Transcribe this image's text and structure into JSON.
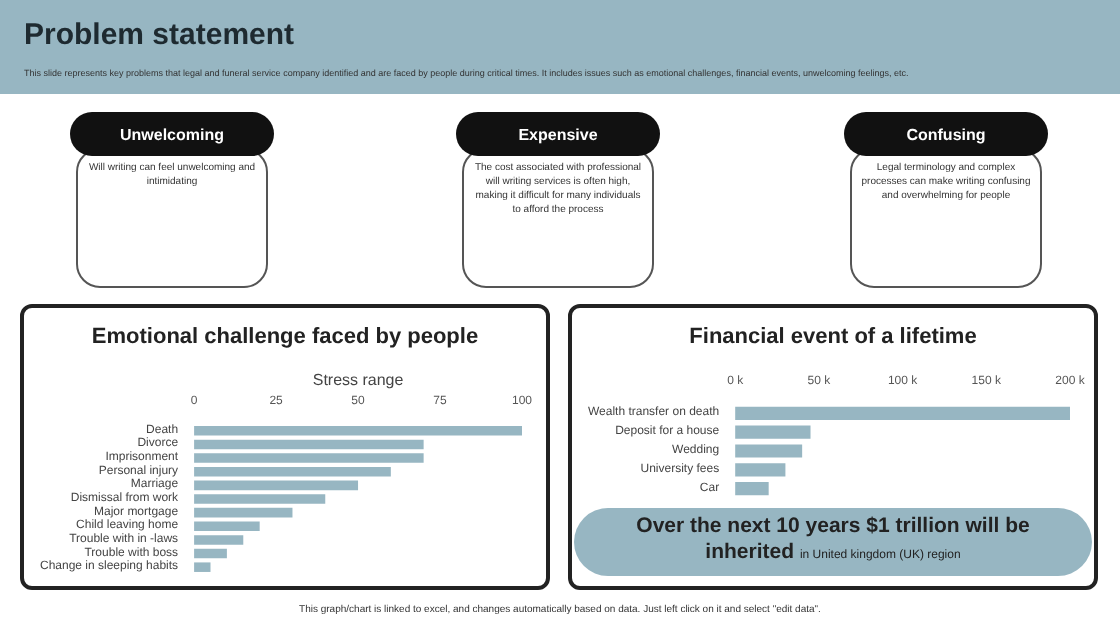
{
  "chart_data": [
    {
      "type": "other",
      "title": "Problem statement",
      "subtitle": "This slide represents key problems that legal and funeral service company identified and are faced by people during critical times. It includes issues such as emotional challenges, financial events, unwelcoming feelings, etc.",
      "annotations": [
        "Unwelcoming",
        "Will writing can feel unwelcoming and intimidating",
        "Expensive",
        "The cost associated with professional will writing services is often high, making it difficult for many individuals to afford the process",
        "Confusing",
        "Legal terminology and complex processes can make writing confusing and overwhelming for people"
      ]
    },
    {
      "type": "bar",
      "orientation": "horizontal",
      "title": "Emotional challenge faced by people",
      "xlabel": "Stress range",
      "categories": [
        "Death",
        "Divorce",
        "Imprisonment",
        "Personal injury",
        "Marriage",
        "Dismissal from work",
        "Major mortgage",
        "Child leaving home",
        "Trouble with in -laws",
        "Trouble with boss",
        "Change in sleeping habits"
      ],
      "values": [
        100,
        70,
        70,
        60,
        50,
        40,
        30,
        20,
        15,
        10,
        5
      ],
      "color": "#97b6c2",
      "xlim": [
        0,
        100
      ],
      "xticks": [
        0,
        25,
        50,
        75,
        100
      ],
      "annotations": [
        "This graph/chart is linked to excel, and changes automatically based on data. Just left click on it and select \"edit data\"."
      ]
    },
    {
      "type": "bar",
      "orientation": "horizontal",
      "title": "Financial event of a lifetime",
      "categories": [
        "Wealth transfer on death",
        "Deposit for a house",
        "Wedding",
        "University fees",
        "Car"
      ],
      "values": [
        200000,
        45000,
        40000,
        30000,
        20000
      ],
      "color": "#97b6c2",
      "xlim": [
        0,
        200000
      ],
      "xticks": [
        {
          "value": 0,
          "label": "0 k"
        },
        {
          "value": 50000,
          "label": "50 k"
        },
        {
          "value": 100000,
          "label": "100 k"
        },
        {
          "value": 150000,
          "label": "150 k"
        },
        {
          "value": 200000,
          "label": "200 k"
        }
      ],
      "annotations": [
        "Over the next 10 years $1 trillion will be inherited",
        "in United kingdom (UK) region"
      ]
    }
  ]
}
